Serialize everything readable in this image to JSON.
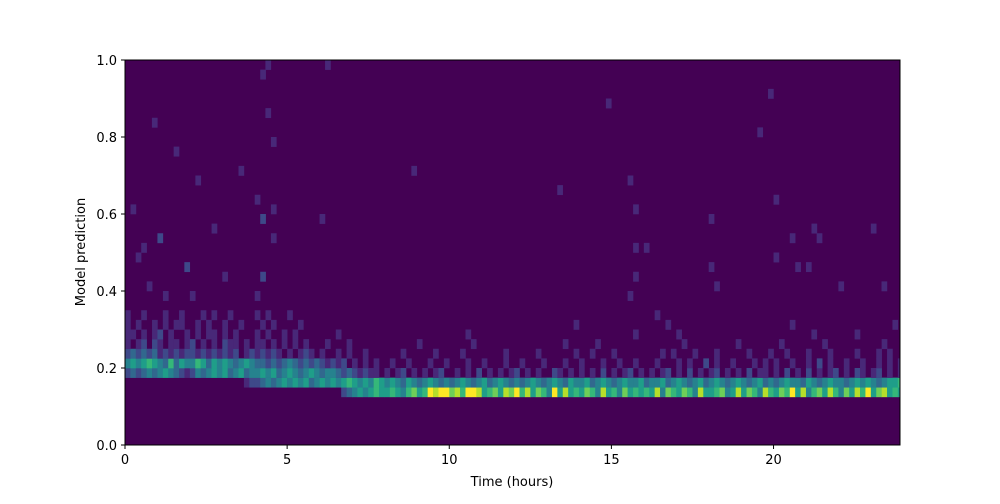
{
  "chart_data": {
    "type": "heatmap",
    "title": "",
    "xlabel": "Time (hours)",
    "ylabel": "Model prediction",
    "xlim": [
      0,
      23.9
    ],
    "ylim": [
      0,
      1.0
    ],
    "xticks": [
      "0",
      "5",
      "10",
      "15",
      "20"
    ],
    "yticks": [
      "0.0",
      "0.2",
      "0.4",
      "0.6",
      "0.8",
      "1.0"
    ],
    "x_bin_width_hours": 0.16667,
    "y_bin_width": 0.025,
    "colormap": "viridis",
    "color_min": "#440154",
    "color_max": "#fde725",
    "count_max": 9,
    "grid": false,
    "rows_by_y_bin_start": {
      "0.125": "000000000000000000000000000000000000000023454565565467569899786998567587968576495856576485647565658476576485567458576486576958467586475869578565",
      "0.15": "000000000000000000000012234345454534545456545465454354345434345434534543434543454354453454345445344534543453454345434534345443543454434545434556",
      "0.175": "232343454321243454534534454534543454344323212110101201010120010102010101201010021010101020101201010120102010120101020110102010201012010210120101",
      "0.2": "454565436354465354543454332323432323212120101010010010001001000100100010010001000100100010010010001000101002010010001010100100102010010010010101",
      "0.225": "232323121212212121212012121210101210100101001000000100000100001000000010000010000001001000100000000101000100010000010001001000100010000100010100",
      "0.25": "101202101101201010211010110101010100010001000000000000100000000010000000000000000100000100000000000000010000000001000000010000000100000000001000",
      "0.275": "110101201001010110101000101001010000000100000000000000000000000100000000000000000000000000000010000000100000000000000000000000010000000100000000",
      "0.3": "101001010110010100100100010100001000000000000000000000000000000000000000000000000001000000000000000010000000000000000000000100000000000000000010",
      "0.325": "100100010010001010010000101000100000000000000000000000000000000000000000000000000000000000000000001000000000000000000000000000000000000000000000"
    },
    "sparse_cells": [
      [
        0.5,
        0.5,
        1
      ],
      [
        0.83,
        0.825,
        1
      ],
      [
        1.5,
        0.75,
        1
      ],
      [
        2.17,
        0.675,
        1
      ],
      [
        1.0,
        0.525,
        2
      ],
      [
        0.33,
        0.475,
        1
      ],
      [
        2.67,
        0.55,
        1
      ],
      [
        3.5,
        0.7,
        1
      ],
      [
        4.0,
        0.625,
        1
      ],
      [
        4.17,
        0.575,
        2
      ],
      [
        4.33,
        0.85,
        1
      ],
      [
        4.17,
        0.95,
        1
      ],
      [
        4.33,
        0.975,
        1
      ],
      [
        4.5,
        0.775,
        1
      ],
      [
        4.5,
        0.6,
        1
      ],
      [
        4.5,
        0.525,
        1
      ],
      [
        0.17,
        0.6,
        1
      ],
      [
        1.83,
        0.45,
        2
      ],
      [
        3.0,
        0.425,
        1
      ],
      [
        4.17,
        0.425,
        2
      ],
      [
        4.0,
        0.375,
        1
      ],
      [
        6.17,
        0.975,
        1
      ],
      [
        6.0,
        0.575,
        1
      ],
      [
        8.83,
        0.7,
        1
      ],
      [
        13.33,
        0.65,
        1
      ],
      [
        14.83,
        0.875,
        1
      ],
      [
        15.5,
        0.675,
        1
      ],
      [
        15.67,
        0.6,
        1
      ],
      [
        15.67,
        0.5,
        1
      ],
      [
        15.67,
        0.425,
        1
      ],
      [
        15.5,
        0.375,
        1
      ],
      [
        16.0,
        0.5,
        1
      ],
      [
        18.0,
        0.575,
        1
      ],
      [
        18.17,
        0.4,
        1
      ],
      [
        18.0,
        0.45,
        1
      ],
      [
        19.5,
        0.8,
        1
      ],
      [
        19.83,
        0.9,
        1
      ],
      [
        20.0,
        0.625,
        1
      ],
      [
        20.0,
        0.475,
        1
      ],
      [
        20.5,
        0.525,
        1
      ],
      [
        20.67,
        0.45,
        1
      ],
      [
        21.0,
        0.45,
        1
      ],
      [
        21.17,
        0.55,
        1
      ],
      [
        21.33,
        0.525,
        1
      ],
      [
        22.0,
        0.4,
        1
      ],
      [
        23.0,
        0.55,
        1
      ],
      [
        23.33,
        0.4,
        1
      ],
      [
        2.0,
        0.375,
        1
      ],
      [
        1.17,
        0.375,
        1
      ],
      [
        0.67,
        0.4,
        1
      ]
    ]
  }
}
